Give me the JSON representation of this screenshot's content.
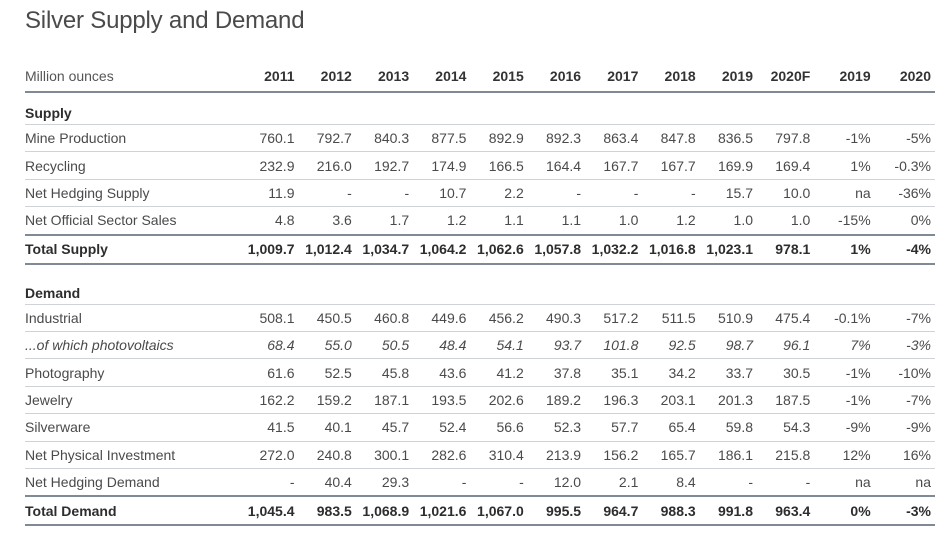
{
  "title": "Silver Supply and Demand",
  "header": {
    "unit": "Million ounces",
    "years": [
      "2011",
      "2012",
      "2013",
      "2014",
      "2015",
      "2016",
      "2017",
      "2018",
      "2019",
      "2020F",
      "2019",
      "2020"
    ]
  },
  "supply": {
    "heading": "Supply",
    "rows": [
      {
        "label": "Mine Production",
        "values": [
          "760.1",
          "792.7",
          "840.3",
          "877.5",
          "892.9",
          "892.3",
          "863.4",
          "847.8",
          "836.5",
          "797.8",
          "-1%",
          "-5%"
        ]
      },
      {
        "label": "Recycling",
        "values": [
          "232.9",
          "216.0",
          "192.7",
          "174.9",
          "166.5",
          "164.4",
          "167.7",
          "167.7",
          "169.9",
          "169.4",
          "1%",
          "-0.3%"
        ]
      },
      {
        "label": "Net Hedging Supply",
        "values": [
          "11.9",
          "-",
          "-",
          "10.7",
          "2.2",
          "-",
          "-",
          "-",
          "15.7",
          "10.0",
          "na",
          "-36%"
        ]
      },
      {
        "label": "Net Official Sector Sales",
        "values": [
          "4.8",
          "3.6",
          "1.7",
          "1.2",
          "1.1",
          "1.1",
          "1.0",
          "1.2",
          "1.0",
          "1.0",
          "-15%",
          "0%"
        ]
      }
    ],
    "total": {
      "label": "Total Supply",
      "values": [
        "1,009.7",
        "1,012.4",
        "1,034.7",
        "1,064.2",
        "1,062.6",
        "1,057.8",
        "1,032.2",
        "1,016.8",
        "1,023.1",
        "978.1",
        "1%",
        "-4%"
      ]
    }
  },
  "demand": {
    "heading": "Demand",
    "rows": [
      {
        "label": "Industrial",
        "values": [
          "508.1",
          "450.5",
          "460.8",
          "449.6",
          "456.2",
          "490.3",
          "517.2",
          "511.5",
          "510.9",
          "475.4",
          "-0.1%",
          "-7%"
        ]
      },
      {
        "label": "...of which photovoltaics",
        "values": [
          "68.4",
          "55.0",
          "50.5",
          "48.4",
          "54.1",
          "93.7",
          "101.8",
          "92.5",
          "98.7",
          "96.1",
          "7%",
          "-3%"
        ]
      },
      {
        "label": "Photography",
        "values": [
          "61.6",
          "52.5",
          "45.8",
          "43.6",
          "41.2",
          "37.8",
          "35.1",
          "34.2",
          "33.7",
          "30.5",
          "-1%",
          "-10%"
        ]
      },
      {
        "label": "Jewelry",
        "values": [
          "162.2",
          "159.2",
          "187.1",
          "193.5",
          "202.6",
          "189.2",
          "196.3",
          "203.1",
          "201.3",
          "187.5",
          "-1%",
          "-7%"
        ]
      },
      {
        "label": "Silverware",
        "values": [
          "41.5",
          "40.1",
          "45.7",
          "52.4",
          "56.6",
          "52.3",
          "57.7",
          "65.4",
          "59.8",
          "54.3",
          "-9%",
          "-9%"
        ]
      },
      {
        "label": "Net Physical Investment",
        "values": [
          "272.0",
          "240.8",
          "300.1",
          "282.6",
          "310.4",
          "213.9",
          "156.2",
          "165.7",
          "186.1",
          "215.8",
          "12%",
          "16%"
        ]
      },
      {
        "label": "Net Hedging Demand",
        "values": [
          "-",
          "40.4",
          "29.3",
          "-",
          "-",
          "12.0",
          "2.1",
          "8.4",
          "-",
          "-",
          "na",
          "na"
        ]
      }
    ],
    "total": {
      "label": "Total Demand",
      "values": [
        "1,045.4",
        "983.5",
        "1,068.9",
        "1,021.6",
        "1,067.0",
        "995.5",
        "964.7",
        "988.3",
        "991.8",
        "963.4",
        "0%",
        "-3%"
      ]
    }
  }
}
